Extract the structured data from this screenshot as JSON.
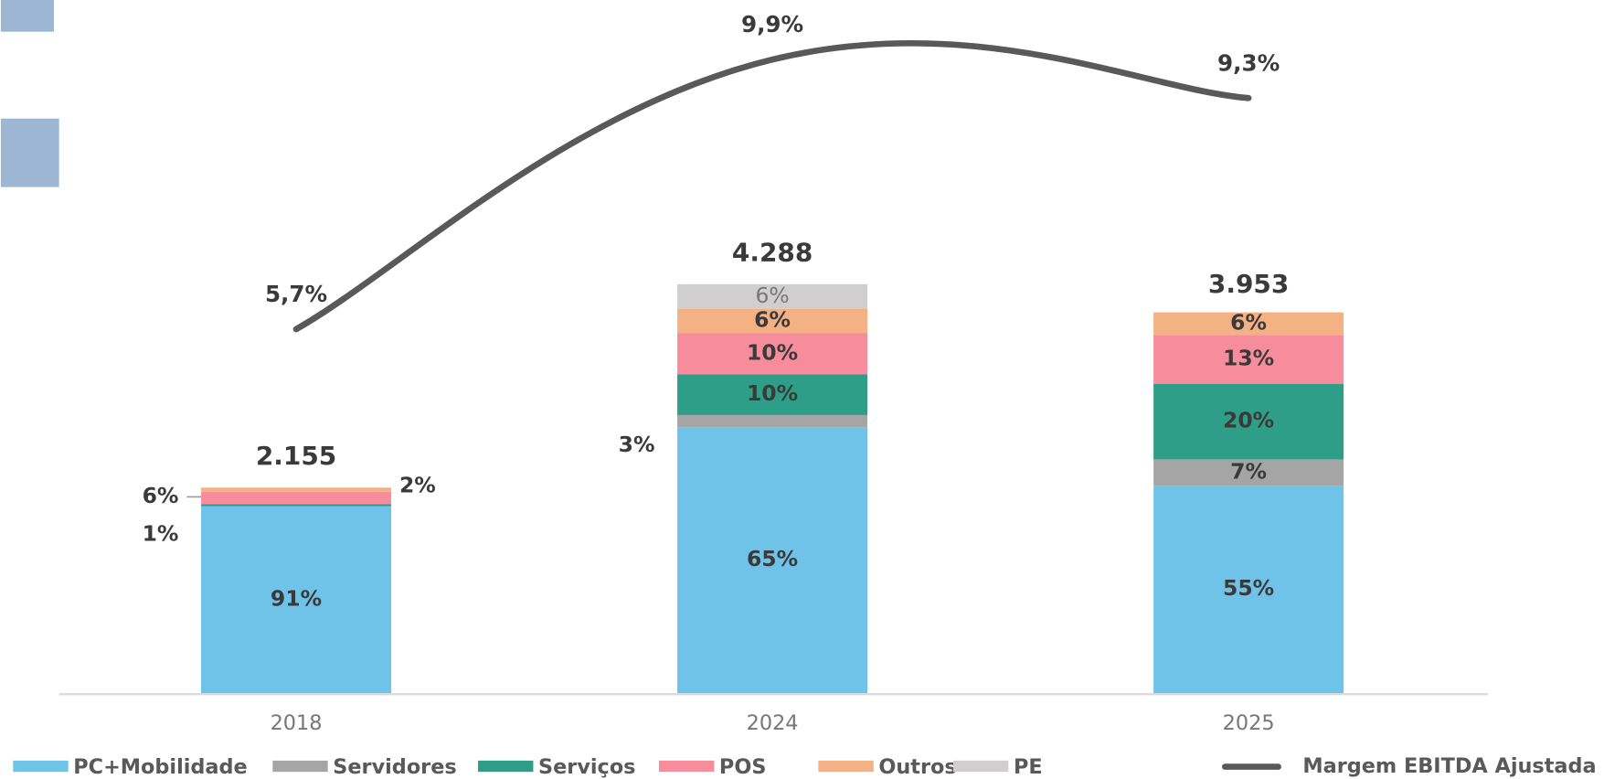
{
  "chart_data": {
    "type": "bar",
    "categories": [
      "2018",
      "2024",
      "2025"
    ],
    "totals": [
      2155,
      4288,
      3953
    ],
    "totals_labels": [
      "2.155",
      "4.288",
      "3.953"
    ],
    "series": [
      {
        "name": "PC+Mobilidade",
        "color": "#70c3e8",
        "values": [
          91,
          65,
          55
        ],
        "value_labels": [
          "91%",
          "65%",
          "55%"
        ]
      },
      {
        "name": "Servidores",
        "color": "#a5a5a5",
        "values": [
          null,
          3,
          7
        ],
        "value_labels": [
          null,
          "3%",
          "7%"
        ]
      },
      {
        "name": "Serviços",
        "color": "#2e9e89",
        "values": [
          1,
          10,
          20
        ],
        "value_labels": [
          "1%",
          "10%",
          "20%"
        ]
      },
      {
        "name": "POS",
        "color": "#f78c9c",
        "values": [
          6,
          10,
          13
        ],
        "value_labels": [
          "6%",
          "10%",
          "13%"
        ]
      },
      {
        "name": "Outros",
        "color": "#f4b183",
        "values": [
          2,
          6,
          6
        ],
        "value_labels": [
          "2%",
          "6%",
          "6%"
        ]
      },
      {
        "name": "PE",
        "color": "#d0cecf",
        "values": [
          null,
          6,
          null
        ],
        "value_labels": [
          null,
          "6%",
          null
        ]
      }
    ],
    "line": {
      "name": "Margem EBITDA Ajustada",
      "color": "#595959",
      "values": [
        5.7,
        9.9,
        9.3
      ],
      "value_labels": [
        "5,7%",
        "9,9%",
        "9,3%"
      ]
    }
  }
}
